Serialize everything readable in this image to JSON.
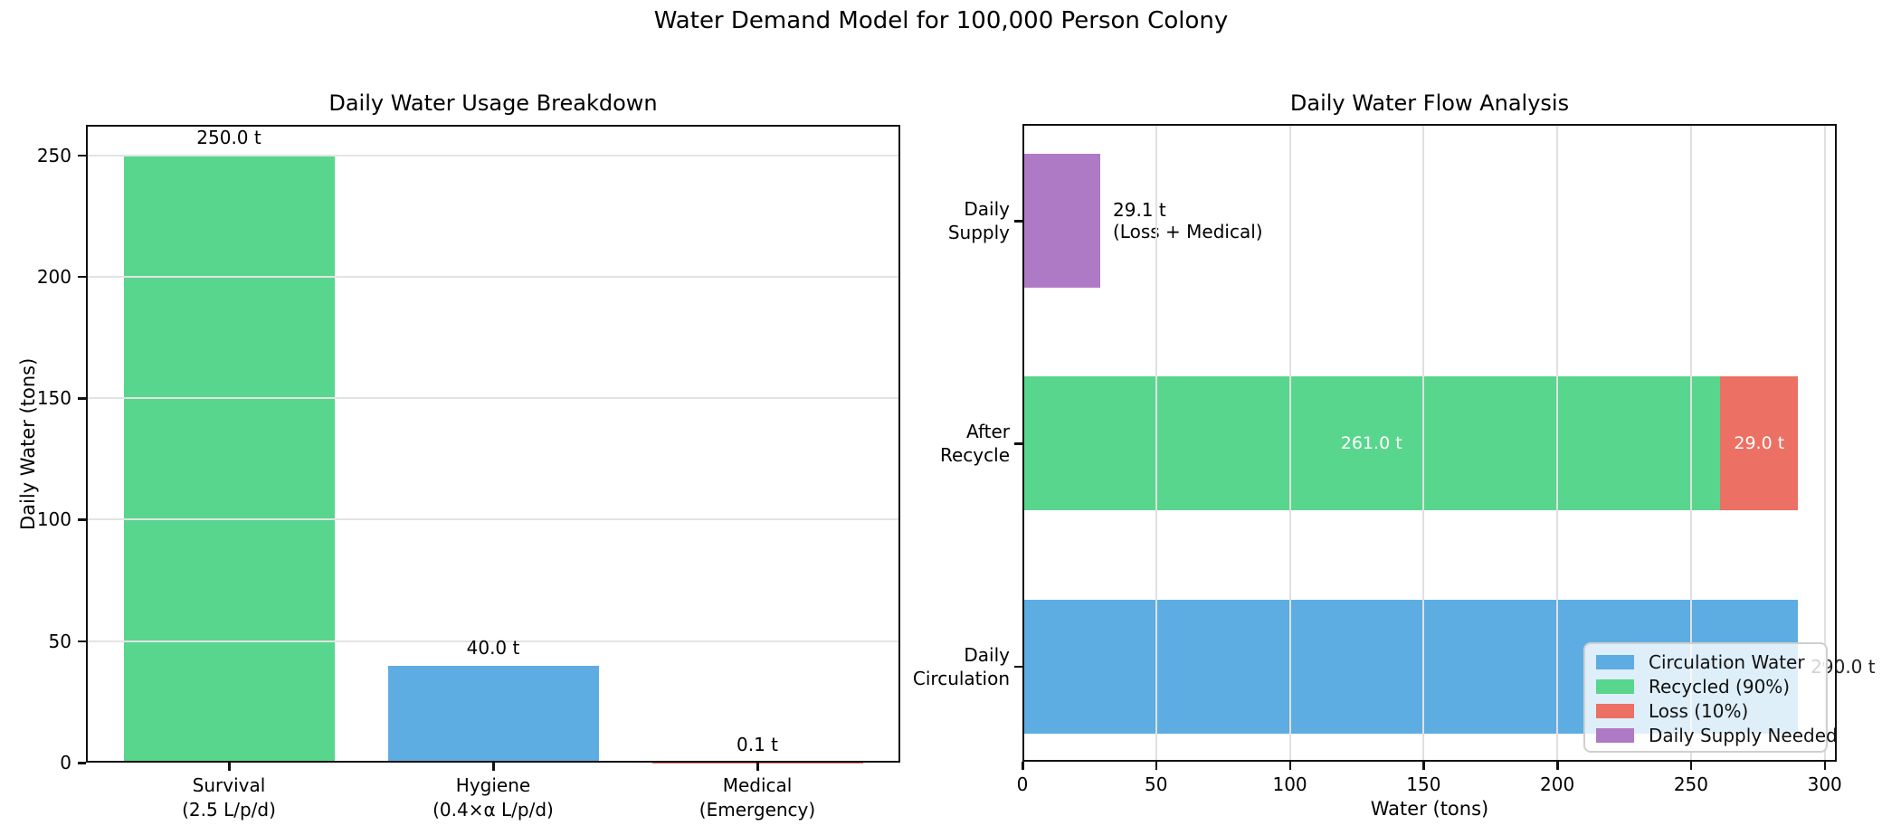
{
  "suptitle": "Water Demand Model for 100,000 Person Colony",
  "chart_data": [
    {
      "type": "bar",
      "title": "Daily Water Usage Breakdown",
      "ylabel": "Daily Water (tons)",
      "categories": [
        "Survival\n(2.5 L/p/d)",
        "Hygiene\n(0.4×α L/p/d)",
        "Medical\n(Emergency)"
      ],
      "values": [
        250.0,
        40.0,
        0.1
      ],
      "value_labels": [
        "250.0 t",
        "40.0 t",
        "0.1 t"
      ],
      "bar_colors": [
        "#58d68d",
        "#5dade2",
        "#ec7063"
      ],
      "yticks": [
        0,
        50,
        100,
        150,
        200,
        250
      ],
      "ylim": [
        0,
        262.5
      ],
      "grid": true
    },
    {
      "type": "bar-horizontal-stacked",
      "title": "Daily Water Flow Analysis",
      "xlabel": "Water (tons)",
      "xticks": [
        0,
        50,
        100,
        150,
        200,
        250,
        300
      ],
      "xlim": [
        0,
        304.5
      ],
      "grid": true,
      "rows": [
        {
          "label": "Daily\nSupply",
          "segments": [
            {
              "name": "Daily Supply Needed",
              "value": 29.1,
              "color": "#af7ac5"
            }
          ],
          "annotation": {
            "text": "29.1 t\n(Loss + Medical)",
            "color": "#000000"
          }
        },
        {
          "label": "After\nRecycle",
          "segments": [
            {
              "name": "Recycled (90%)",
              "value": 261.0,
              "color": "#58d68d",
              "label": "261.0 t"
            },
            {
              "name": "Loss (10%)",
              "value": 29.0,
              "color": "#ec7063",
              "label": "29.0 t"
            }
          ]
        },
        {
          "label": "Daily\nCirculation",
          "segments": [
            {
              "name": "Circulation Water",
              "value": 290.0,
              "color": "#5dade2"
            }
          ],
          "annotation": {
            "text": "290.0 t",
            "color": "#222222"
          }
        }
      ],
      "legend": [
        {
          "label": "Circulation Water",
          "color": "#5dade2"
        },
        {
          "label": "Recycled (90%)",
          "color": "#58d68d"
        },
        {
          "label": "Loss (10%)",
          "color": "#ec7063"
        },
        {
          "label": "Daily Supply Needed",
          "color": "#af7ac5"
        }
      ],
      "legend_position": "lower right"
    }
  ]
}
